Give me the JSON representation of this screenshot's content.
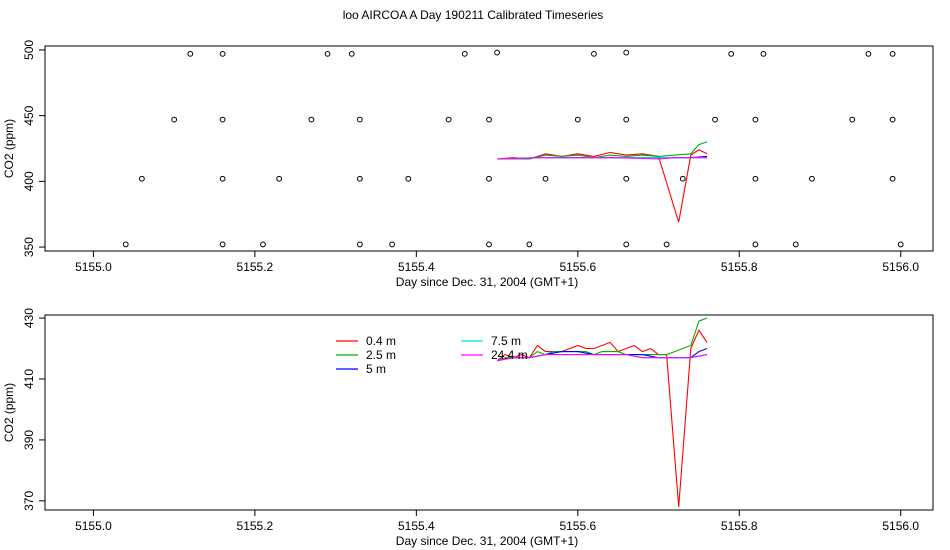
{
  "title": "loo AIRCOA A  Day 190211  Calibrated Timeseries",
  "chart_data": [
    {
      "type": "scatter",
      "xlabel": "Day since Dec. 31, 2004 (GMT+1)",
      "ylabel": "CO2 (ppm)",
      "xlim": [
        4994.94,
        5156.04
      ],
      "ylim": [
        347,
        503
      ],
      "x_ticks": [
        "5155.0",
        "5155.2",
        "5155.4",
        "5155.6",
        "5155.8",
        "5156.0"
      ],
      "y_ticks": [
        "350",
        "400",
        "450",
        "500"
      ],
      "points": [
        {
          "x": 5155.12,
          "y": 497
        },
        {
          "x": 5155.16,
          "y": 497
        },
        {
          "x": 5155.29,
          "y": 497
        },
        {
          "x": 5155.32,
          "y": 497
        },
        {
          "x": 5155.46,
          "y": 497
        },
        {
          "x": 5155.5,
          "y": 498
        },
        {
          "x": 5155.62,
          "y": 497
        },
        {
          "x": 5155.66,
          "y": 498
        },
        {
          "x": 5155.79,
          "y": 497
        },
        {
          "x": 5155.83,
          "y": 497
        },
        {
          "x": 5155.96,
          "y": 497
        },
        {
          "x": 5155.99,
          "y": 497
        },
        {
          "x": 5155.1,
          "y": 447
        },
        {
          "x": 5155.16,
          "y": 447
        },
        {
          "x": 5155.27,
          "y": 447
        },
        {
          "x": 5155.33,
          "y": 447
        },
        {
          "x": 5155.44,
          "y": 447
        },
        {
          "x": 5155.49,
          "y": 447
        },
        {
          "x": 5155.6,
          "y": 447
        },
        {
          "x": 5155.66,
          "y": 447
        },
        {
          "x": 5155.77,
          "y": 447
        },
        {
          "x": 5155.82,
          "y": 447
        },
        {
          "x": 5155.94,
          "y": 447
        },
        {
          "x": 5155.99,
          "y": 447
        },
        {
          "x": 5155.06,
          "y": 402
        },
        {
          "x": 5155.16,
          "y": 402
        },
        {
          "x": 5155.23,
          "y": 402
        },
        {
          "x": 5155.33,
          "y": 402
        },
        {
          "x": 5155.39,
          "y": 402
        },
        {
          "x": 5155.49,
          "y": 402
        },
        {
          "x": 5155.56,
          "y": 402
        },
        {
          "x": 5155.66,
          "y": 402
        },
        {
          "x": 5155.73,
          "y": 402
        },
        {
          "x": 5155.82,
          "y": 402
        },
        {
          "x": 5155.89,
          "y": 402
        },
        {
          "x": 5155.99,
          "y": 402
        },
        {
          "x": 5155.04,
          "y": 352
        },
        {
          "x": 5155.16,
          "y": 352
        },
        {
          "x": 5155.21,
          "y": 352
        },
        {
          "x": 5155.33,
          "y": 352
        },
        {
          "x": 5155.37,
          "y": 352
        },
        {
          "x": 5155.49,
          "y": 352
        },
        {
          "x": 5155.54,
          "y": 352
        },
        {
          "x": 5155.66,
          "y": 352
        },
        {
          "x": 5155.71,
          "y": 352
        },
        {
          "x": 5155.82,
          "y": 352
        },
        {
          "x": 5155.87,
          "y": 352
        },
        {
          "x": 5156.0,
          "y": 352
        }
      ],
      "lines": [
        {
          "color": "#ff0000",
          "x": [
            5155.5,
            5155.52,
            5155.54,
            5155.56,
            5155.58,
            5155.6,
            5155.62,
            5155.64,
            5155.66,
            5155.68,
            5155.7,
            5155.725,
            5155.74,
            5155.75,
            5155.76
          ],
          "y": [
            417,
            418,
            417,
            421,
            419,
            421,
            419,
            422,
            420,
            421,
            419,
            369,
            420,
            424,
            421
          ]
        },
        {
          "color": "#00b000",
          "x": [
            5155.5,
            5155.52,
            5155.54,
            5155.56,
            5155.58,
            5155.6,
            5155.62,
            5155.64,
            5155.66,
            5155.68,
            5155.7,
            5155.72,
            5155.74,
            5155.75,
            5155.76
          ],
          "y": [
            417,
            417,
            417,
            420,
            419,
            420,
            418,
            420,
            419,
            420,
            419,
            420,
            421,
            428,
            430
          ]
        },
        {
          "color": "#0000ff",
          "x": [
            5155.5,
            5155.55,
            5155.6,
            5155.65,
            5155.7,
            5155.72,
            5155.74,
            5155.76
          ],
          "y": [
            417,
            418,
            418,
            418,
            418,
            418,
            418,
            419
          ]
        },
        {
          "color": "#00e0e0",
          "x": [
            5155.5,
            5155.55,
            5155.6,
            5155.65,
            5155.7,
            5155.72,
            5155.74,
            5155.76
          ],
          "y": [
            417,
            418,
            418,
            418,
            418,
            418,
            418,
            418
          ]
        },
        {
          "color": "#ff00ff",
          "x": [
            5155.5,
            5155.55,
            5155.6,
            5155.65,
            5155.7,
            5155.72,
            5155.74,
            5155.76
          ],
          "y": [
            417,
            418,
            418,
            418,
            417,
            418,
            418,
            418
          ]
        }
      ]
    },
    {
      "type": "line",
      "xlabel": "Day since Dec. 31, 2004 (GMT+1)",
      "ylabel": "CO2 (ppm)",
      "xlim": [
        4994.94,
        5156.04
      ],
      "ylim": [
        367,
        431
      ],
      "x_ticks": [
        "5155.0",
        "5155.2",
        "5155.4",
        "5155.6",
        "5155.8",
        "5156.0"
      ],
      "y_ticks": [
        "370",
        "390",
        "410",
        "430"
      ],
      "legend": "top-left",
      "series": [
        {
          "name": "0.4 m",
          "color": "#ff0000",
          "x": [
            5155.5,
            5155.51,
            5155.52,
            5155.53,
            5155.54,
            5155.55,
            5155.56,
            5155.57,
            5155.58,
            5155.59,
            5155.6,
            5155.61,
            5155.62,
            5155.63,
            5155.64,
            5155.65,
            5155.66,
            5155.67,
            5155.68,
            5155.69,
            5155.7,
            5155.71,
            5155.725,
            5155.74,
            5155.75,
            5155.76
          ],
          "y": [
            416,
            418,
            417,
            418,
            417,
            421,
            419,
            419,
            419,
            420,
            421,
            420,
            420,
            421,
            422,
            419,
            420,
            421,
            419,
            420,
            418,
            418,
            368,
            420,
            426,
            422
          ]
        },
        {
          "name": "2.5 m",
          "color": "#00b000",
          "x": [
            5155.5,
            5155.51,
            5155.52,
            5155.53,
            5155.54,
            5155.55,
            5155.56,
            5155.57,
            5155.58,
            5155.59,
            5155.6,
            5155.61,
            5155.62,
            5155.63,
            5155.64,
            5155.65,
            5155.66,
            5155.67,
            5155.68,
            5155.69,
            5155.7,
            5155.71,
            5155.72,
            5155.73,
            5155.74,
            5155.75,
            5155.76
          ],
          "y": [
            416,
            417,
            417,
            417,
            417,
            419,
            418,
            419,
            419,
            419,
            419,
            419,
            418,
            419,
            419,
            419,
            418,
            418,
            418,
            418,
            418,
            418,
            419,
            420,
            421,
            429,
            430
          ]
        },
        {
          "name": "5 m",
          "color": "#0000ff",
          "x": [
            5155.5,
            5155.52,
            5155.54,
            5155.56,
            5155.58,
            5155.6,
            5155.62,
            5155.64,
            5155.66,
            5155.68,
            5155.7,
            5155.72,
            5155.74,
            5155.75,
            5155.76
          ],
          "y": [
            416,
            417,
            417,
            418,
            419,
            419,
            418,
            418,
            418,
            418,
            417,
            417,
            417,
            419,
            420
          ]
        },
        {
          "name": "7.5 m",
          "color": "#00e0e0",
          "x": [
            5155.5,
            5155.52,
            5155.54,
            5155.56,
            5155.58,
            5155.6,
            5155.62,
            5155.64,
            5155.66,
            5155.68,
            5155.7,
            5155.72,
            5155.74,
            5155.76
          ],
          "y": [
            416,
            417,
            417,
            418,
            418,
            418,
            418,
            418,
            418,
            417,
            417,
            417,
            417,
            418
          ]
        },
        {
          "name": "24.4 m",
          "color": "#ff00ff",
          "x": [
            5155.5,
            5155.52,
            5155.54,
            5155.56,
            5155.58,
            5155.6,
            5155.62,
            5155.64,
            5155.66,
            5155.68,
            5155.7,
            5155.72,
            5155.74,
            5155.76
          ],
          "y": [
            416,
            417,
            417,
            418,
            418,
            418,
            418,
            418,
            418,
            417,
            417,
            417,
            417,
            418
          ]
        }
      ]
    }
  ]
}
